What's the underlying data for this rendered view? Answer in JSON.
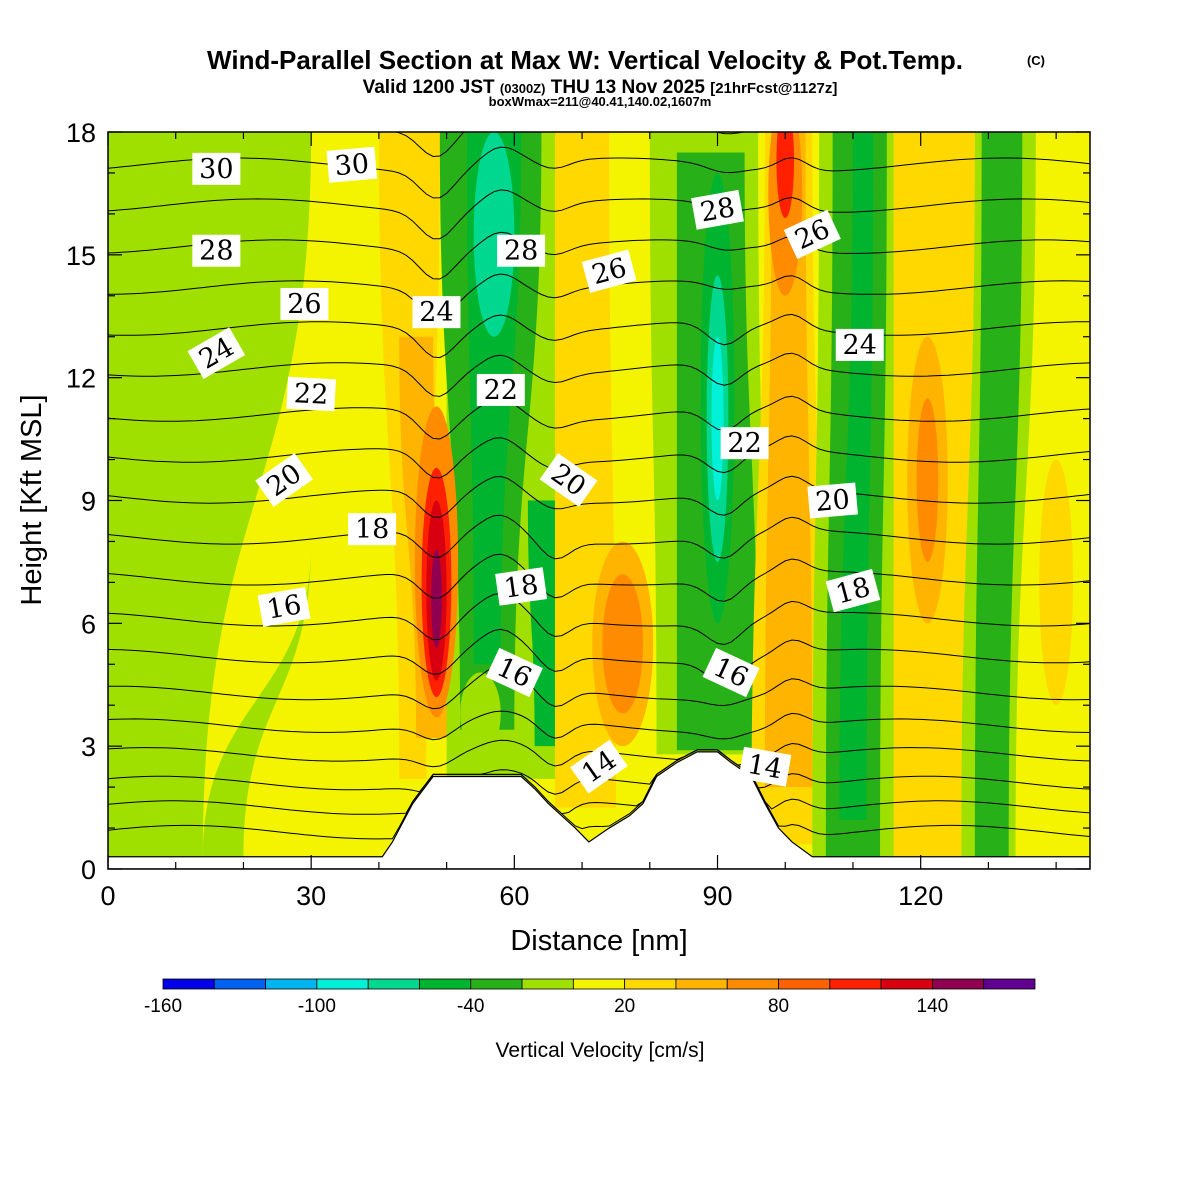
{
  "chart_data": {
    "type": "filled-contour-cross-section",
    "title": "Wind-Parallel Section at Max W: Vertical Velocity & Pot.Temp.",
    "title_mark": "(C)",
    "subtitle": {
      "valid": "Valid 1200 JST",
      "utc": "(0300Z)",
      "date": "THU 13 Nov 2025",
      "forecast": "[21hrFcst@1127z]"
    },
    "box_info": "boxWmax=211@40.41,140.02,1607m",
    "xlabel": "Distance [nm]",
    "ylabel": "Height [Kft MSL]",
    "xlim": [
      0,
      145
    ],
    "ylim": [
      0,
      18
    ],
    "xticks": [
      "0",
      "30",
      "60",
      "90",
      "120"
    ],
    "xtick_values": [
      0,
      30,
      60,
      90,
      120
    ],
    "yticks": [
      "0",
      "3",
      "6",
      "9",
      "12",
      "15",
      "18"
    ],
    "ytick_values": [
      0,
      3,
      6,
      9,
      12,
      15,
      18
    ],
    "colorbar": {
      "title": "Vertical Velocity [cm/s]",
      "tick_labels": [
        "-160",
        "-100",
        "-40",
        "20",
        "80",
        "140"
      ],
      "tick_values": [
        -160,
        -100,
        -40,
        20,
        80,
        140
      ],
      "bin_edges": [
        -160,
        -140,
        -120,
        -100,
        -80,
        -60,
        -40,
        -20,
        0,
        20,
        40,
        60,
        80,
        100,
        120,
        140,
        160,
        180
      ],
      "colors": [
        "#0000e8",
        "#0060f0",
        "#00b4f0",
        "#00f0d8",
        "#00d890",
        "#00b430",
        "#28b018",
        "#a0e000",
        "#f4f400",
        "#ffd800",
        "#ffb400",
        "#ff8c00",
        "#ff6000",
        "#ff2000",
        "#d80010",
        "#900050",
        "#600090"
      ]
    },
    "series": [
      {
        "name": "vertical_velocity_maxima_cm_s",
        "points": [
          {
            "x": 48.5,
            "y": 6.5,
            "value": 150
          },
          {
            "x": 100,
            "y": 17.5,
            "value": 120
          },
          {
            "x": 76,
            "y": 5.5,
            "value": 70
          },
          {
            "x": 121,
            "y": 9.5,
            "value": 70
          }
        ]
      },
      {
        "name": "vertical_velocity_minima_cm_s",
        "points": [
          {
            "x": 90,
            "y": 11,
            "value": -100
          },
          {
            "x": 57,
            "y": 15.5,
            "value": -70
          },
          {
            "x": 110,
            "y": 5,
            "value": -40
          }
        ]
      }
    ],
    "potential_temperature": {
      "units": "C",
      "contour_interval": 1,
      "labels": [
        {
          "text": "30",
          "x": 16,
          "y": 17.1
        },
        {
          "text": "30",
          "x": 36,
          "y": 17.2
        },
        {
          "text": "28",
          "x": 16,
          "y": 15.1
        },
        {
          "text": "28",
          "x": 61,
          "y": 15.1
        },
        {
          "text": "28",
          "x": 90,
          "y": 16.1
        },
        {
          "text": "26",
          "x": 29,
          "y": 13.8
        },
        {
          "text": "26",
          "x": 74,
          "y": 14.6
        },
        {
          "text": "26",
          "x": 104,
          "y": 15.5
        },
        {
          "text": "24",
          "x": 16,
          "y": 12.6
        },
        {
          "text": "24",
          "x": 48.5,
          "y": 13.6
        },
        {
          "text": "24",
          "x": 111,
          "y": 12.8
        },
        {
          "text": "22",
          "x": 30,
          "y": 11.6
        },
        {
          "text": "22",
          "x": 58,
          "y": 11.7
        },
        {
          "text": "22",
          "x": 94,
          "y": 10.4
        },
        {
          "text": "20",
          "x": 26,
          "y": 9.5
        },
        {
          "text": "20",
          "x": 68,
          "y": 9.5
        },
        {
          "text": "20",
          "x": 107,
          "y": 9.0
        },
        {
          "text": "18",
          "x": 39,
          "y": 8.3
        },
        {
          "text": "18",
          "x": 61,
          "y": 6.9
        },
        {
          "text": "18",
          "x": 110,
          "y": 6.8
        },
        {
          "text": "16",
          "x": 26,
          "y": 6.4
        },
        {
          "text": "16",
          "x": 60,
          "y": 4.8
        },
        {
          "text": "16",
          "x": 92,
          "y": 4.8
        },
        {
          "text": "14",
          "x": 72.5,
          "y": 2.5
        },
        {
          "text": "14",
          "x": 97,
          "y": 2.5
        }
      ]
    },
    "terrain_kft": [
      [
        0,
        0.3
      ],
      [
        40.5,
        0.3
      ],
      [
        42,
        0.66
      ],
      [
        45,
        1.6
      ],
      [
        48,
        2.26
      ],
      [
        61,
        2.26
      ],
      [
        63,
        1.96
      ],
      [
        65,
        1.6
      ],
      [
        67,
        1.3
      ],
      [
        69,
        1.0
      ],
      [
        71,
        0.66
      ],
      [
        74,
        1.0
      ],
      [
        77,
        1.3
      ],
      [
        79,
        1.6
      ],
      [
        81,
        2.26
      ],
      [
        84,
        2.6
      ],
      [
        87,
        2.86
      ],
      [
        90,
        2.86
      ],
      [
        92,
        2.6
      ],
      [
        95,
        2.26
      ],
      [
        97,
        1.6
      ],
      [
        99,
        1.0
      ],
      [
        101,
        0.66
      ],
      [
        104,
        0.3
      ],
      [
        145,
        0.3
      ]
    ]
  }
}
